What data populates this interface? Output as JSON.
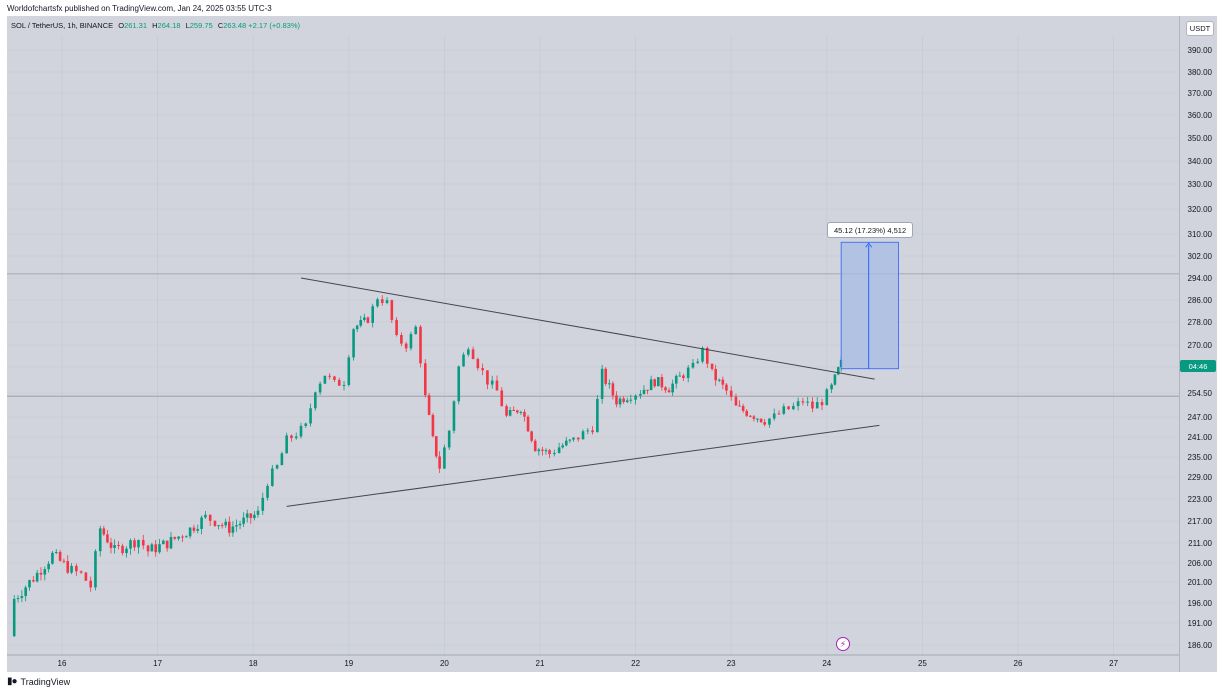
{
  "header": {
    "published": "Worldofchartsfx published on TradingView.com, Jan 24, 2025 03:55 UTC-3"
  },
  "legend": {
    "symbol": "SOL / TetherUS, 1h, BINANCE",
    "open_label": "O",
    "open": "261.31",
    "high_label": "H",
    "high": "264.18",
    "low_label": "L",
    "low": "259.75",
    "close_label": "C",
    "close": "263.48",
    "change": "+2.17 (+0.83%)"
  },
  "currency_button": "USDT",
  "price_tag": "04:46",
  "measure_label": "45.12 (17.23%) 4,512",
  "footer": {
    "brand": "TradingView"
  },
  "colors": {
    "up": "#089981",
    "down": "#f23645",
    "measure_fill": "#a7bce6",
    "measure_line": "#2962ff",
    "trendline": "#434651",
    "background": "#d1d4dc"
  },
  "icons": {
    "lightning": "lightning-icon",
    "logo": "tradingview-logo-icon"
  },
  "chart_data": {
    "type": "candlestick",
    "symbol": "SOL / TetherUS",
    "interval": "1h",
    "y_ticks": [
      "390.00",
      "380.00",
      "370.00",
      "360.00",
      "350.00",
      "340.00",
      "330.00",
      "320.00",
      "310.00",
      "302.00",
      "294.00",
      "286.00",
      "278.00",
      "270.00",
      "262.00",
      "254.50",
      "247.00",
      "241.00",
      "235.00",
      "229.00",
      "223.00",
      "217.00",
      "211.00",
      "206.00",
      "201.00",
      "196.00",
      "191.00",
      "186.00"
    ],
    "x_ticks": [
      "16",
      "17",
      "18",
      "19",
      "20",
      "21",
      "22",
      "23",
      "24",
      "25",
      "26",
      "27"
    ],
    "ohlc_path": [
      [
        15.45,
        188,
        "bar"
      ],
      [
        15.5,
        197
      ],
      [
        15.7,
        202
      ],
      [
        15.9,
        208
      ],
      [
        16.1,
        204
      ],
      [
        16.2,
        203
      ],
      [
        16.3,
        200
      ],
      [
        16.4,
        215
      ],
      [
        16.55,
        209
      ],
      [
        16.8,
        212
      ],
      [
        16.9,
        209
      ],
      [
        17.1,
        211
      ],
      [
        17.3,
        214
      ],
      [
        17.5,
        218
      ],
      [
        17.6,
        217
      ],
      [
        17.75,
        215
      ],
      [
        17.9,
        217
      ],
      [
        18.05,
        219
      ],
      [
        18.15,
        228
      ],
      [
        18.25,
        232
      ],
      [
        18.35,
        240
      ],
      [
        18.45,
        242
      ],
      [
        18.55,
        244
      ],
      [
        18.65,
        256
      ],
      [
        18.75,
        260
      ],
      [
        18.85,
        257
      ],
      [
        18.95,
        258
      ],
      [
        19.05,
        276
      ],
      [
        19.2,
        279
      ],
      [
        19.3,
        287
      ],
      [
        19.4,
        285
      ],
      [
        19.5,
        272
      ],
      [
        19.6,
        270
      ],
      [
        19.7,
        276
      ],
      [
        19.8,
        253
      ],
      [
        19.88,
        240
      ],
      [
        19.95,
        232
      ],
      [
        20.05,
        243
      ],
      [
        20.15,
        262
      ],
      [
        20.25,
        270
      ],
      [
        20.35,
        263
      ],
      [
        20.45,
        258
      ],
      [
        20.55,
        255
      ],
      [
        20.65,
        247
      ],
      [
        20.8,
        250
      ],
      [
        20.95,
        238
      ],
      [
        21.1,
        236
      ],
      [
        21.2,
        238
      ],
      [
        21.35,
        240
      ],
      [
        21.45,
        242
      ],
      [
        21.55,
        244
      ],
      [
        21.65,
        260
      ],
      [
        21.8,
        252
      ],
      [
        21.95,
        254
      ],
      [
        22.05,
        255
      ],
      [
        22.2,
        258
      ],
      [
        22.35,
        256
      ],
      [
        22.5,
        260
      ],
      [
        22.6,
        262
      ],
      [
        22.7,
        268
      ],
      [
        22.8,
        260
      ],
      [
        22.95,
        255
      ],
      [
        23.05,
        250
      ],
      [
        23.2,
        248
      ],
      [
        23.35,
        246
      ],
      [
        23.45,
        247
      ],
      [
        23.55,
        249
      ],
      [
        23.65,
        250
      ],
      [
        23.75,
        252
      ],
      [
        23.85,
        250
      ],
      [
        23.95,
        252
      ],
      [
        24.05,
        256
      ],
      [
        24.12,
        261
      ],
      [
        24.15,
        263.48
      ]
    ],
    "trendlines": [
      {
        "name": "upper",
        "from": [
          18.5,
          294
        ],
        "to": [
          24.5,
          258.5
        ]
      },
      {
        "name": "lower",
        "from": [
          18.35,
          221
        ],
        "to": [
          24.55,
          244.5
        ]
      }
    ],
    "horizontal_lines": [
      295.5,
      253.5
    ],
    "measure": {
      "x_start": 24.15,
      "x_end": 24.75,
      "y_low": 261.5,
      "y_high": 307,
      "change": "45.12 (17.23%) 4,512"
    },
    "ylim": [
      186,
      394
    ],
    "grid": true
  }
}
